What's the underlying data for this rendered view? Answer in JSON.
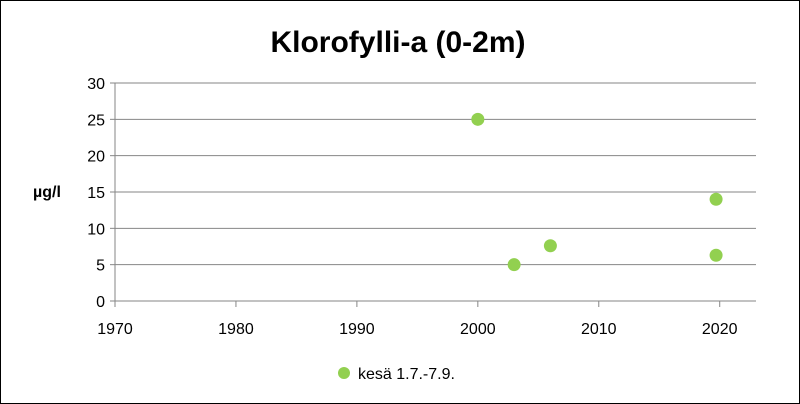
{
  "chart_data": {
    "type": "scatter",
    "title": "Klorofylli-a (0-2m)",
    "xlabel": "",
    "ylabel": "µg/l",
    "xlim": [
      1970,
      2023
    ],
    "ylim": [
      0,
      30
    ],
    "x_ticks": [
      1970,
      1980,
      1990,
      2000,
      2010,
      2020
    ],
    "y_ticks": [
      0,
      5,
      10,
      15,
      20,
      25,
      30
    ],
    "grid": true,
    "legend_position": "bottom",
    "series": [
      {
        "name": "kesä 1.7.-7.9.",
        "color": "#92d050",
        "points": [
          {
            "x": 2000,
            "y": 25
          },
          {
            "x": 2003,
            "y": 5
          },
          {
            "x": 2006,
            "y": 7.6
          },
          {
            "x": 2019.7,
            "y": 14
          },
          {
            "x": 2019.7,
            "y": 6.3
          }
        ]
      }
    ]
  }
}
